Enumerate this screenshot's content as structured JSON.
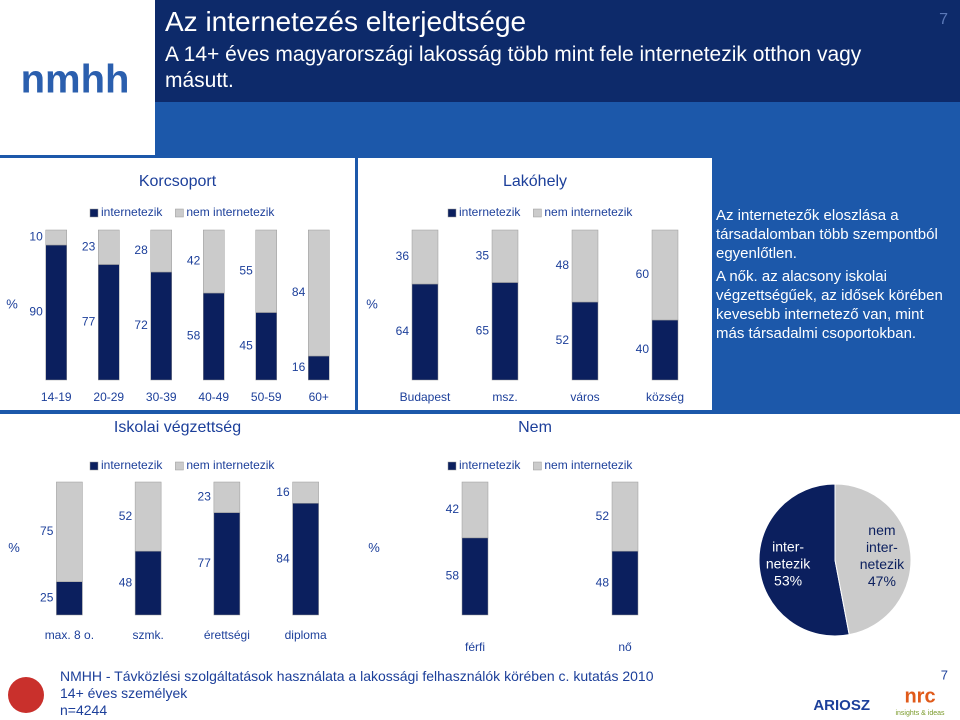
{
  "header": {
    "logo": "nmhh",
    "title": "Az internetezés elterjedtsége",
    "subtitle": "A 14+ éves magyarországi lakosság több mint fele internetezik otthon vagy másutt.",
    "page": "7"
  },
  "chart_data": [
    {
      "type": "stacked_bar",
      "title": "Korcsoport",
      "y_label": "%",
      "categories": [
        "14-19",
        "20-29",
        "30-39",
        "40-49",
        "50-59",
        "60+"
      ],
      "ylim": [
        0,
        100
      ],
      "series": [
        {
          "name": "internetezik",
          "color": "#0b1f5e",
          "values": [
            90,
            77,
            72,
            58,
            45,
            16
          ]
        },
        {
          "name": "nem internetezik",
          "color": "#cbcbcb",
          "values": [
            10,
            23,
            28,
            42,
            55,
            84
          ]
        }
      ]
    },
    {
      "type": "stacked_bar",
      "title": "Lakóhely",
      "y_label": "%",
      "categories": [
        "Budapest",
        "msz.",
        "város",
        "község"
      ],
      "ylim": [
        0,
        100
      ],
      "series": [
        {
          "name": "internetezik",
          "color": "#0b1f5e",
          "values": [
            64,
            65,
            52,
            40
          ]
        },
        {
          "name": "nem internetezik",
          "color": "#cbcbcb",
          "values": [
            36,
            35,
            48,
            60
          ]
        }
      ]
    },
    {
      "type": "stacked_bar",
      "title": "Iskolai végzettség",
      "y_label": "%",
      "categories": [
        "max. 8 o.",
        "szmk.",
        "érettségi",
        "diploma"
      ],
      "ylim": [
        0,
        100
      ],
      "series": [
        {
          "name": "internetezik",
          "color": "#0b1f5e",
          "values": [
            25,
            48,
            77,
            84
          ]
        },
        {
          "name": "nem internetezik",
          "color": "#cbcbcb",
          "values": [
            75,
            52,
            23,
            16
          ]
        }
      ]
    },
    {
      "type": "stacked_bar",
      "title": "Nem",
      "y_label": "%",
      "categories": [
        "férfi",
        "nő"
      ],
      "ylim": [
        0,
        100
      ],
      "series": [
        {
          "name": "internetezik",
          "color": "#0b1f5e",
          "values": [
            58,
            48
          ]
        },
        {
          "name": "nem internetezik",
          "color": "#cbcbcb",
          "values": [
            42,
            52
          ]
        }
      ]
    },
    {
      "type": "pie",
      "categories": [
        "inter-\nnetezik",
        "nem\ninter-\nnetezik"
      ],
      "values": [
        53,
        47
      ],
      "value_labels": [
        "53%",
        "47%"
      ],
      "colors": [
        "#0b1f5e",
        "#cbcbcb"
      ]
    }
  ],
  "sidebar": {
    "paragraphs": [
      "Az internetezők eloszlása a társadalomban több szempontból egyenlőtlen.",
      "A nők. az alacsony iskolai végzettségűek, az idősek körében kevesebb internetező van, mint más társadalmi csoportokban."
    ]
  },
  "footer": {
    "lines": [
      "NMHH - Távközlési szolgáltatások használata a lakossági felhasználók körében c. kutatás 2010",
      "14+ éves személyek",
      "n=4244"
    ],
    "page": "7",
    "logos": [
      "ARIOSZ",
      "nrc",
      "insights & ideas"
    ]
  }
}
